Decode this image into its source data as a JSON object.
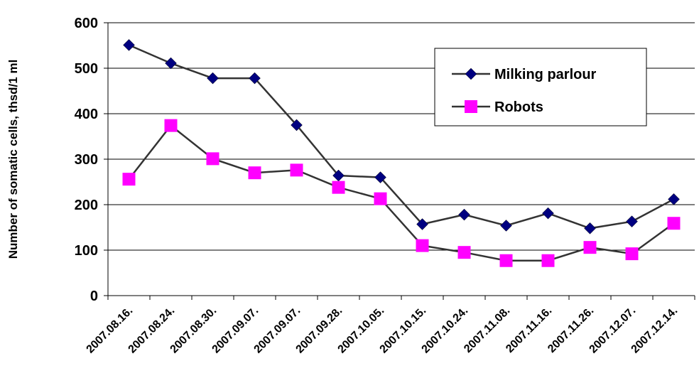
{
  "chart_data": {
    "type": "line",
    "title": "",
    "xlabel": "",
    "ylabel": "Number of somatic cells, thsd/1 ml",
    "ylim": [
      0,
      600
    ],
    "yticks": [
      0,
      100,
      200,
      300,
      400,
      500,
      600
    ],
    "grid": "horizontal",
    "legend_position": "upper-right",
    "categories": [
      "2007.08.16.",
      "2007.08.24.",
      "2007.08.30.",
      "2007.09.07.",
      "2007.09.07.",
      "2007.09.28.",
      "2007.10.05.",
      "2007.10.15.",
      "2007.10.24.",
      "2007.11.08.",
      "2007.11.16.",
      "2007.11.26.",
      "2007.12.07.",
      "2007.12.14."
    ],
    "series": [
      {
        "name": "Milking parlour",
        "color": "#000080",
        "marker": "diamond",
        "values": [
          551,
          511,
          478,
          478,
          375,
          264,
          260,
          157,
          178,
          154,
          181,
          148,
          163,
          212
        ]
      },
      {
        "name": "Robots",
        "color": "#ff00ff",
        "marker": "square",
        "values": [
          256,
          374,
          301,
          270,
          276,
          238,
          213,
          110,
          95,
          77,
          77,
          106,
          92,
          159
        ]
      }
    ]
  }
}
